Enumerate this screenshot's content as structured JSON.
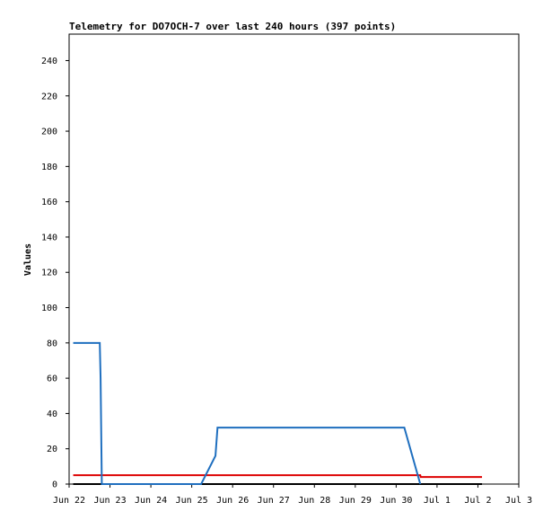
{
  "chart_data": {
    "type": "line",
    "title": "Telemetry for DO7OCH-7 over last 240 hours (397 points)",
    "y_label": "Values",
    "xlim": [
      0,
      11
    ],
    "xticks": [
      {
        "value": 0,
        "label": "Jun 22"
      },
      {
        "value": 1,
        "label": "Jun 23"
      },
      {
        "value": 2,
        "label": "Jun 24"
      },
      {
        "value": 3,
        "label": "Jun 25"
      },
      {
        "value": 4,
        "label": "Jun 26"
      },
      {
        "value": 5,
        "label": "Jun 27"
      },
      {
        "value": 6,
        "label": "Jun 28"
      },
      {
        "value": 7,
        "label": "Jun 29"
      },
      {
        "value": 8,
        "label": "Jun 30"
      },
      {
        "value": 9,
        "label": "Jul 1"
      },
      {
        "value": 10,
        "label": "Jul 2"
      },
      {
        "value": 11,
        "label": "Jul 3"
      }
    ],
    "ylim": [
      0,
      255
    ],
    "yticks": [
      0,
      20,
      40,
      60,
      80,
      100,
      120,
      140,
      160,
      180,
      200,
      220,
      240
    ],
    "series": [
      {
        "color": "#000000",
        "x": [
          0.1,
          10.1
        ],
        "values": [
          0,
          0
        ]
      },
      {
        "color": "#dd0000",
        "x": [
          0.1,
          8.59,
          8.6,
          10.1
        ],
        "values": [
          5,
          5,
          4,
          4
        ]
      },
      {
        "color": "#1f6fbf",
        "x": [
          0.1,
          0.75,
          0.77,
          0.79,
          0.8,
          3.23,
          3.58,
          3.63,
          8.2,
          8.59
        ],
        "values": [
          80,
          80,
          60,
          20,
          0,
          0,
          16,
          32,
          32,
          0
        ]
      }
    ]
  }
}
